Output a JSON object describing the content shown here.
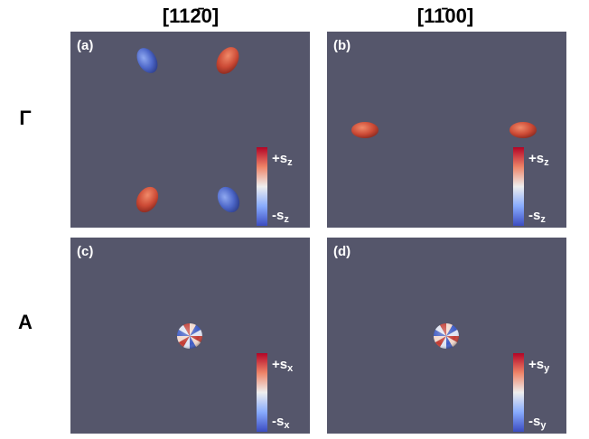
{
  "columns": [
    {
      "label": "[112̄0]"
    },
    {
      "label": "[11̄00]"
    }
  ],
  "rows": [
    {
      "label": "Γ"
    },
    {
      "label": "A"
    }
  ],
  "panels": [
    {
      "label": "(a)",
      "colorbar": {
        "max": {
          "main": "+s",
          "sub": "z"
        },
        "min": {
          "main": "-s",
          "sub": "z"
        }
      }
    },
    {
      "label": "(b)",
      "colorbar": {
        "max": {
          "main": "+s",
          "sub": "z"
        },
        "min": {
          "main": "-s",
          "sub": "z"
        }
      }
    },
    {
      "label": "(c)",
      "colorbar": {
        "max": {
          "main": "+s",
          "sub": "x"
        },
        "min": {
          "main": "-s",
          "sub": "x"
        }
      }
    },
    {
      "label": "(d)",
      "colorbar": {
        "max": {
          "main": "+s",
          "sub": "y"
        },
        "min": {
          "main": "-s",
          "sub": "y"
        }
      }
    }
  ]
}
